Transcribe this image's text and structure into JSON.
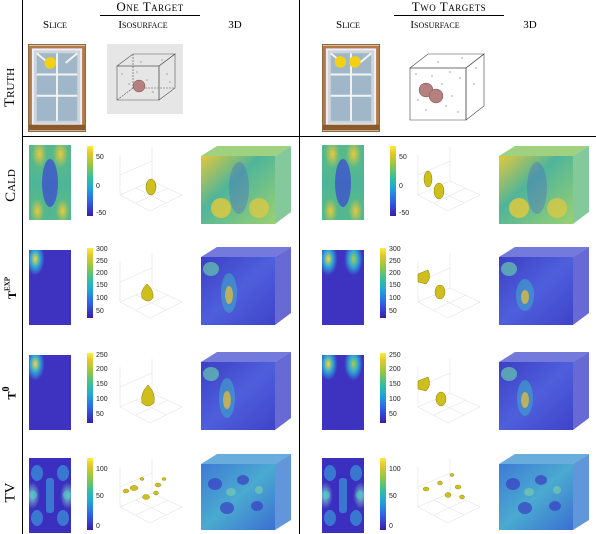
{
  "groups": [
    {
      "title": "One Target",
      "columns": [
        "Slice",
        "Isosurface",
        "3D"
      ]
    },
    {
      "title": "Two Targets",
      "columns": [
        "Slice",
        "Isosurface",
        "3D"
      ]
    }
  ],
  "rows": [
    {
      "label": "Truth"
    },
    {
      "label": "Cald",
      "colorbar_ticks": [
        "50",
        "0",
        "-50"
      ]
    },
    {
      "label": "t^exp",
      "colorbar_ticks": [
        "300",
        "250",
        "200",
        "150",
        "100",
        "50"
      ]
    },
    {
      "label": "t^0",
      "colorbar_ticks": [
        "250",
        "200",
        "150",
        "100",
        "50"
      ]
    },
    {
      "label": "TV",
      "colorbar_ticks": [
        "100",
        "50",
        "0"
      ]
    }
  ],
  "colormap": [
    "#3a1dac",
    "#2f5ee8",
    "#1ea7d8",
    "#33c19a",
    "#9cc83a",
    "#e7c72b",
    "#f8f03a"
  ]
}
